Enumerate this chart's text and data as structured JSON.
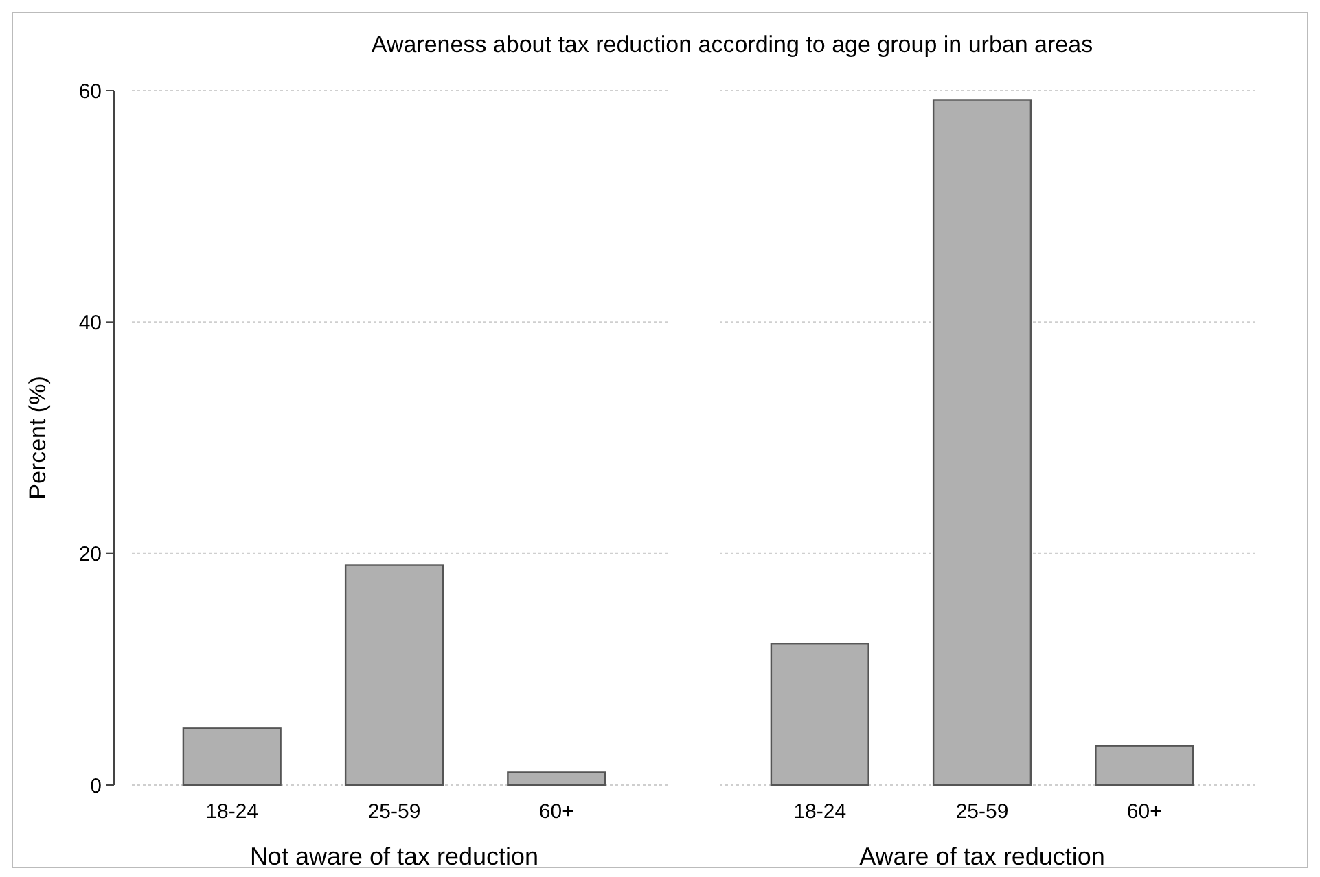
{
  "chart_data": [
    {
      "type": "bar",
      "title": "Awareness about tax reduction according to age group in urban areas",
      "xlabel": "Not aware of tax reduction",
      "ylabel": "Percent (%)",
      "categories": [
        "18-24",
        "25-59",
        "60+"
      ],
      "values": [
        4.9,
        19.0,
        1.1
      ],
      "color": "#b0b0b0",
      "ylim": [
        0,
        60
      ],
      "yticks": [
        0,
        20,
        40,
        60
      ],
      "grid": "y"
    },
    {
      "type": "bar",
      "xlabel": "Aware of tax reduction",
      "categories": [
        "18-24",
        "25-59",
        "60+"
      ],
      "values": [
        12.2,
        59.2,
        3.4
      ],
      "color": "#b0b0b0",
      "ylim": [
        0,
        60
      ],
      "yticks": [
        0,
        20,
        40,
        60
      ],
      "grid": "y",
      "tick_labels": "x"
    }
  ]
}
